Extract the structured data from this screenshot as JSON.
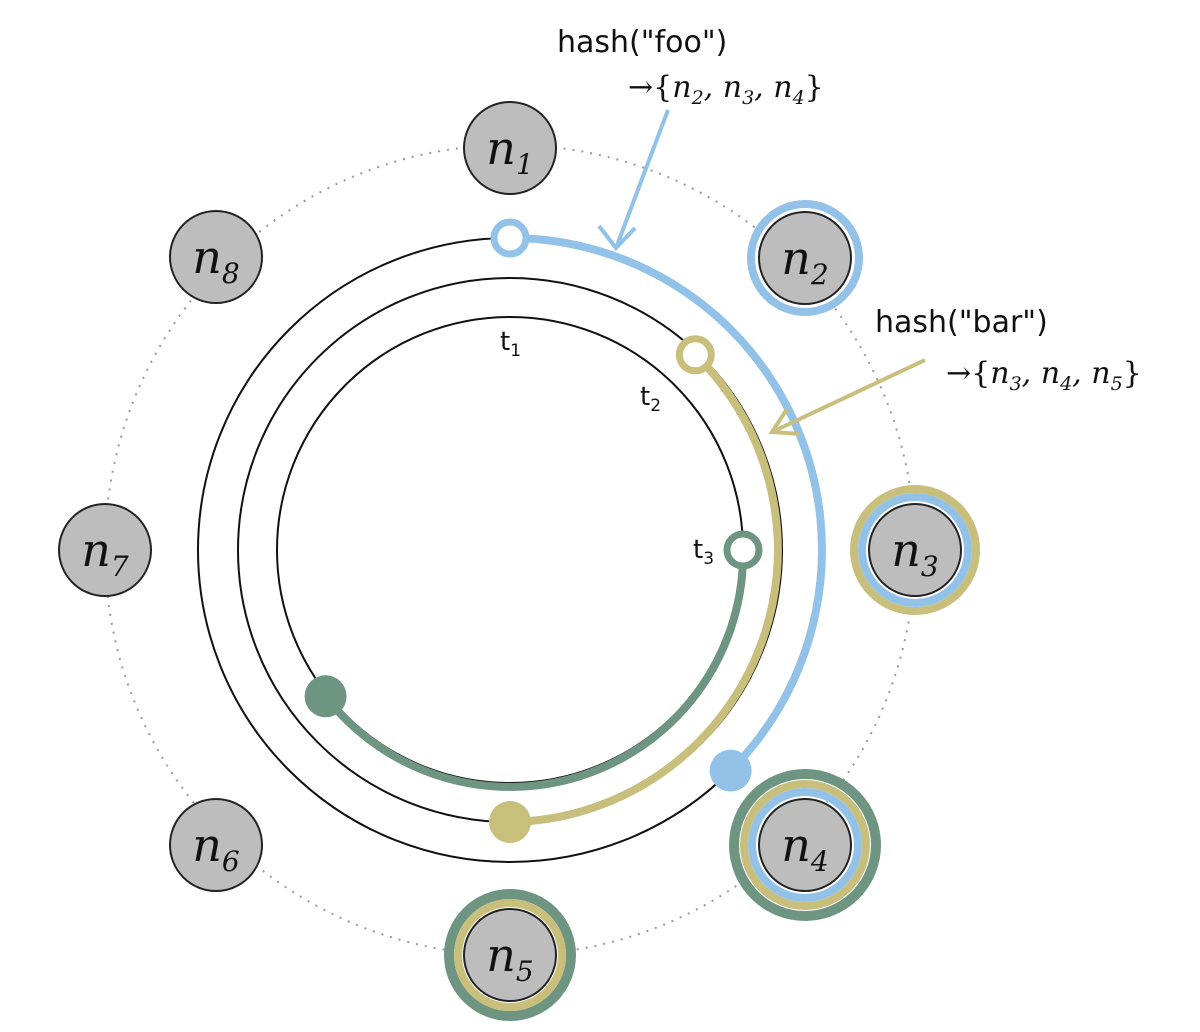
{
  "colors": {
    "foo": "#93c2e8",
    "bar": "#c8bf7c",
    "t3": "#6e9482",
    "node_fill": "#bdbdbd",
    "node_stroke": "#222222",
    "ring_dots": "#9a9a9a"
  },
  "nodes": [
    {
      "id": "n1",
      "base": "n",
      "sub": "1"
    },
    {
      "id": "n2",
      "base": "n",
      "sub": "2"
    },
    {
      "id": "n3",
      "base": "n",
      "sub": "3"
    },
    {
      "id": "n4",
      "base": "n",
      "sub": "4"
    },
    {
      "id": "n5",
      "base": "n",
      "sub": "5"
    },
    {
      "id": "n6",
      "base": "n",
      "sub": "6"
    },
    {
      "id": "n7",
      "base": "n",
      "sub": "7"
    },
    {
      "id": "n8",
      "base": "n",
      "sub": "8"
    }
  ],
  "tracks": [
    {
      "label": "t",
      "sub": "1"
    },
    {
      "label": "t",
      "sub": "2"
    },
    {
      "label": "t",
      "sub": "3"
    }
  ],
  "annotations": {
    "foo": {
      "title": "hash(\"foo\")",
      "arrow": "→",
      "set": [
        "2",
        "3",
        "4"
      ]
    },
    "bar": {
      "title": "hash(\"bar\")",
      "arrow": "→",
      "set": [
        "3",
        "4",
        "5"
      ]
    }
  }
}
